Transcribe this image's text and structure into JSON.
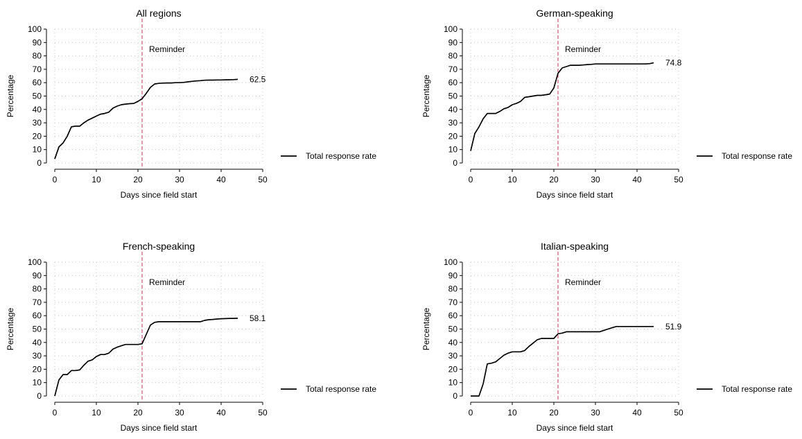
{
  "chart_data": [
    {
      "type": "line",
      "title": "All regions",
      "xlabel": "Days since field start",
      "ylabel": "Percentage",
      "xlim": [
        0,
        50
      ],
      "ylim": [
        0,
        100
      ],
      "xticks": [
        "0",
        "10",
        "20",
        "30",
        "40",
        "50"
      ],
      "yticks": [
        "0",
        "10",
        "20",
        "30",
        "40",
        "50",
        "60",
        "70",
        "80",
        "90",
        "100"
      ],
      "grid": "dotted",
      "reminder": {
        "label": "Reminder",
        "x": 21
      },
      "end_label": "62.5",
      "legend": {
        "position": "right",
        "label": "Total response rate"
      },
      "series": [
        {
          "name": "Total response rate",
          "x": [
            0,
            1,
            2,
            3,
            4,
            5,
            6,
            7,
            8,
            9,
            10,
            11,
            12,
            13,
            14,
            15,
            16,
            17,
            18,
            19,
            20,
            21,
            22,
            23,
            24,
            25,
            26,
            27,
            28,
            29,
            30,
            31,
            32,
            33,
            34,
            35,
            36,
            37,
            38,
            39,
            40,
            41,
            42,
            43,
            44
          ],
          "y": [
            3,
            12,
            15,
            20,
            27,
            27.5,
            27.5,
            30,
            32,
            33.5,
            35,
            36.5,
            37,
            38,
            41,
            42.5,
            43.5,
            44,
            44.3,
            44.5,
            46,
            48,
            52,
            56.5,
            59,
            59.5,
            59.7,
            59.8,
            59.8,
            60,
            60,
            60.2,
            60.6,
            61,
            61.3,
            61.5,
            61.8,
            61.9,
            61.9,
            62,
            62,
            62.1,
            62.2,
            62.3,
            62.5
          ]
        }
      ]
    },
    {
      "type": "line",
      "title": "German-speaking",
      "xlabel": "Days since field start",
      "ylabel": "Percentage",
      "xlim": [
        0,
        50
      ],
      "ylim": [
        0,
        100
      ],
      "xticks": [
        "0",
        "10",
        "20",
        "30",
        "40",
        "50"
      ],
      "yticks": [
        "0",
        "10",
        "20",
        "30",
        "40",
        "50",
        "60",
        "70",
        "80",
        "90",
        "100"
      ],
      "grid": "dotted",
      "reminder": {
        "label": "Reminder",
        "x": 21
      },
      "end_label": "74.8",
      "legend": {
        "position": "right",
        "label": "Total response rate"
      },
      "series": [
        {
          "name": "Total response rate",
          "x": [
            0,
            1,
            2,
            3,
            4,
            5,
            6,
            7,
            8,
            9,
            10,
            11,
            12,
            13,
            14,
            15,
            16,
            17,
            18,
            19,
            20,
            21,
            22,
            23,
            24,
            25,
            26,
            27,
            28,
            29,
            30,
            31,
            32,
            33,
            34,
            35,
            36,
            37,
            38,
            39,
            40,
            41,
            42,
            43,
            44
          ],
          "y": [
            9,
            22,
            27,
            33,
            37,
            37,
            37,
            38.5,
            40.5,
            41.5,
            43.5,
            44.5,
            46,
            49,
            49.5,
            50,
            50.5,
            50.5,
            51,
            51.5,
            56,
            67,
            71,
            72,
            73,
            73,
            73,
            73.2,
            73.5,
            73.7,
            74,
            74,
            74,
            74,
            74,
            74,
            74,
            74,
            74,
            74,
            74,
            74,
            74,
            74.2,
            74.8
          ]
        }
      ]
    },
    {
      "type": "line",
      "title": "French-speaking",
      "xlabel": "Days since field start",
      "ylabel": "Percentage",
      "xlim": [
        0,
        50
      ],
      "ylim": [
        0,
        100
      ],
      "xticks": [
        "0",
        "10",
        "20",
        "30",
        "40",
        "50"
      ],
      "yticks": [
        "0",
        "10",
        "20",
        "30",
        "40",
        "50",
        "60",
        "70",
        "80",
        "90",
        "100"
      ],
      "grid": "dotted",
      "reminder": {
        "label": "Reminder",
        "x": 21
      },
      "end_label": "58.1",
      "legend": {
        "position": "right",
        "label": "Total response rate"
      },
      "series": [
        {
          "name": "Total response rate",
          "x": [
            0,
            1,
            2,
            3,
            4,
            5,
            6,
            7,
            8,
            9,
            10,
            11,
            12,
            13,
            14,
            15,
            16,
            17,
            18,
            19,
            20,
            21,
            22,
            23,
            24,
            25,
            26,
            27,
            28,
            29,
            30,
            31,
            32,
            33,
            34,
            35,
            36,
            37,
            38,
            39,
            40,
            41,
            42,
            43,
            44
          ],
          "y": [
            0,
            12,
            16,
            16,
            19,
            19,
            19.5,
            23,
            26,
            27,
            29.5,
            31,
            31,
            32,
            35,
            36.5,
            37.5,
            38.5,
            38.5,
            38.5,
            38.5,
            39,
            46,
            53,
            55,
            55.5,
            55.5,
            55.5,
            55.5,
            55.5,
            55.5,
            55.5,
            55.5,
            55.5,
            55.5,
            55.5,
            56.5,
            57,
            57.2,
            57.5,
            57.7,
            57.8,
            58,
            58,
            58.1
          ]
        }
      ]
    },
    {
      "type": "line",
      "title": "Italian-speaking",
      "xlabel": "Days since field start",
      "ylabel": "Percentage",
      "xlim": [
        0,
        50
      ],
      "ylim": [
        0,
        100
      ],
      "xticks": [
        "0",
        "10",
        "20",
        "30",
        "40",
        "50"
      ],
      "yticks": [
        "0",
        "10",
        "20",
        "30",
        "40",
        "50",
        "60",
        "70",
        "80",
        "90",
        "100"
      ],
      "grid": "dotted",
      "reminder": {
        "label": "Reminder",
        "x": 21
      },
      "end_label": "51.9",
      "legend": {
        "position": "right",
        "label": "Total response rate"
      },
      "series": [
        {
          "name": "Total response rate",
          "x": [
            0,
            1,
            2,
            3,
            4,
            5,
            6,
            7,
            8,
            9,
            10,
            11,
            12,
            13,
            14,
            15,
            16,
            17,
            18,
            19,
            20,
            21,
            22,
            23,
            24,
            25,
            26,
            27,
            28,
            29,
            30,
            31,
            32,
            33,
            34,
            35,
            36,
            37,
            38,
            39,
            40,
            41,
            42,
            43,
            44
          ],
          "y": [
            0,
            0,
            0,
            9,
            24,
            24.5,
            25.5,
            28,
            30.5,
            32,
            33,
            33,
            33,
            34,
            37,
            39.5,
            42,
            43,
            43,
            43,
            43,
            46.5,
            47,
            48,
            48,
            48,
            48,
            48,
            48,
            48,
            48,
            48,
            49,
            50,
            51,
            51.9,
            51.9,
            51.9,
            51.9,
            51.9,
            51.9,
            51.9,
            51.9,
            51.9,
            51.9
          ]
        }
      ]
    }
  ]
}
